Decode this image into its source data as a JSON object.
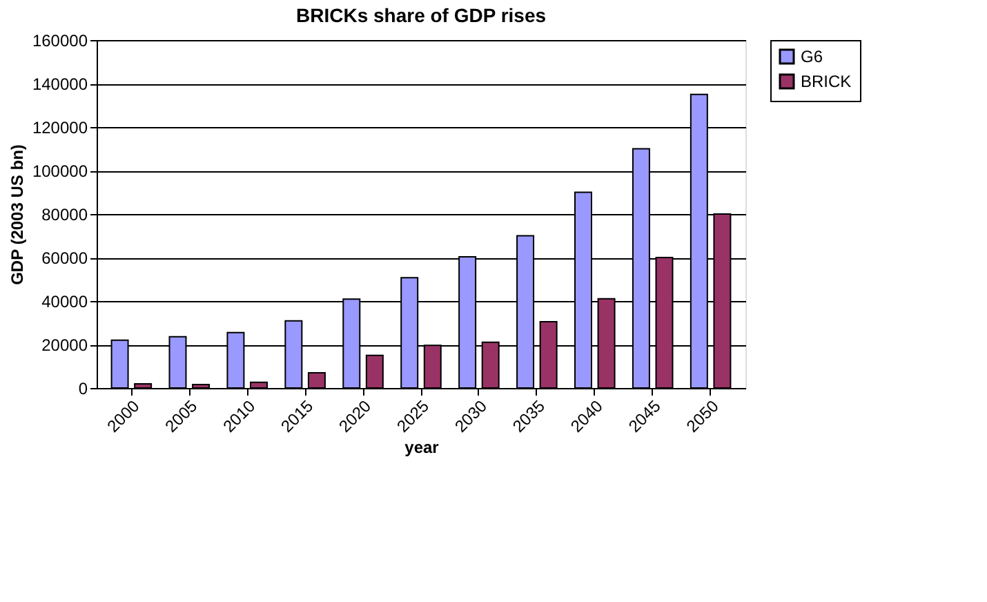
{
  "chart_data": {
    "type": "bar",
    "title": "BRICKs share of GDP rises",
    "xlabel": "year",
    "ylabel": "GDP (2003 US bn)",
    "categories": [
      "2000",
      "2005",
      "2010",
      "2015",
      "2020",
      "2025",
      "2030",
      "2035",
      "2040",
      "2045",
      "2050"
    ],
    "series": [
      {
        "name": "G6",
        "color": "#9999ff",
        "values": [
          22000,
          23600,
          25500,
          30900,
          40900,
          50700,
          60300,
          70000,
          90000,
          110000,
          135000
        ]
      },
      {
        "name": "BRICK",
        "color": "#993366",
        "values": [
          1900,
          1600,
          2600,
          7000,
          15000,
          19600,
          21000,
          30500,
          41000,
          60000,
          80000
        ]
      }
    ],
    "ylim": [
      0,
      160000
    ],
    "yticks": [
      0,
      20000,
      40000,
      60000,
      80000,
      100000,
      120000,
      140000,
      160000
    ],
    "grid": "y",
    "legend": "right"
  }
}
